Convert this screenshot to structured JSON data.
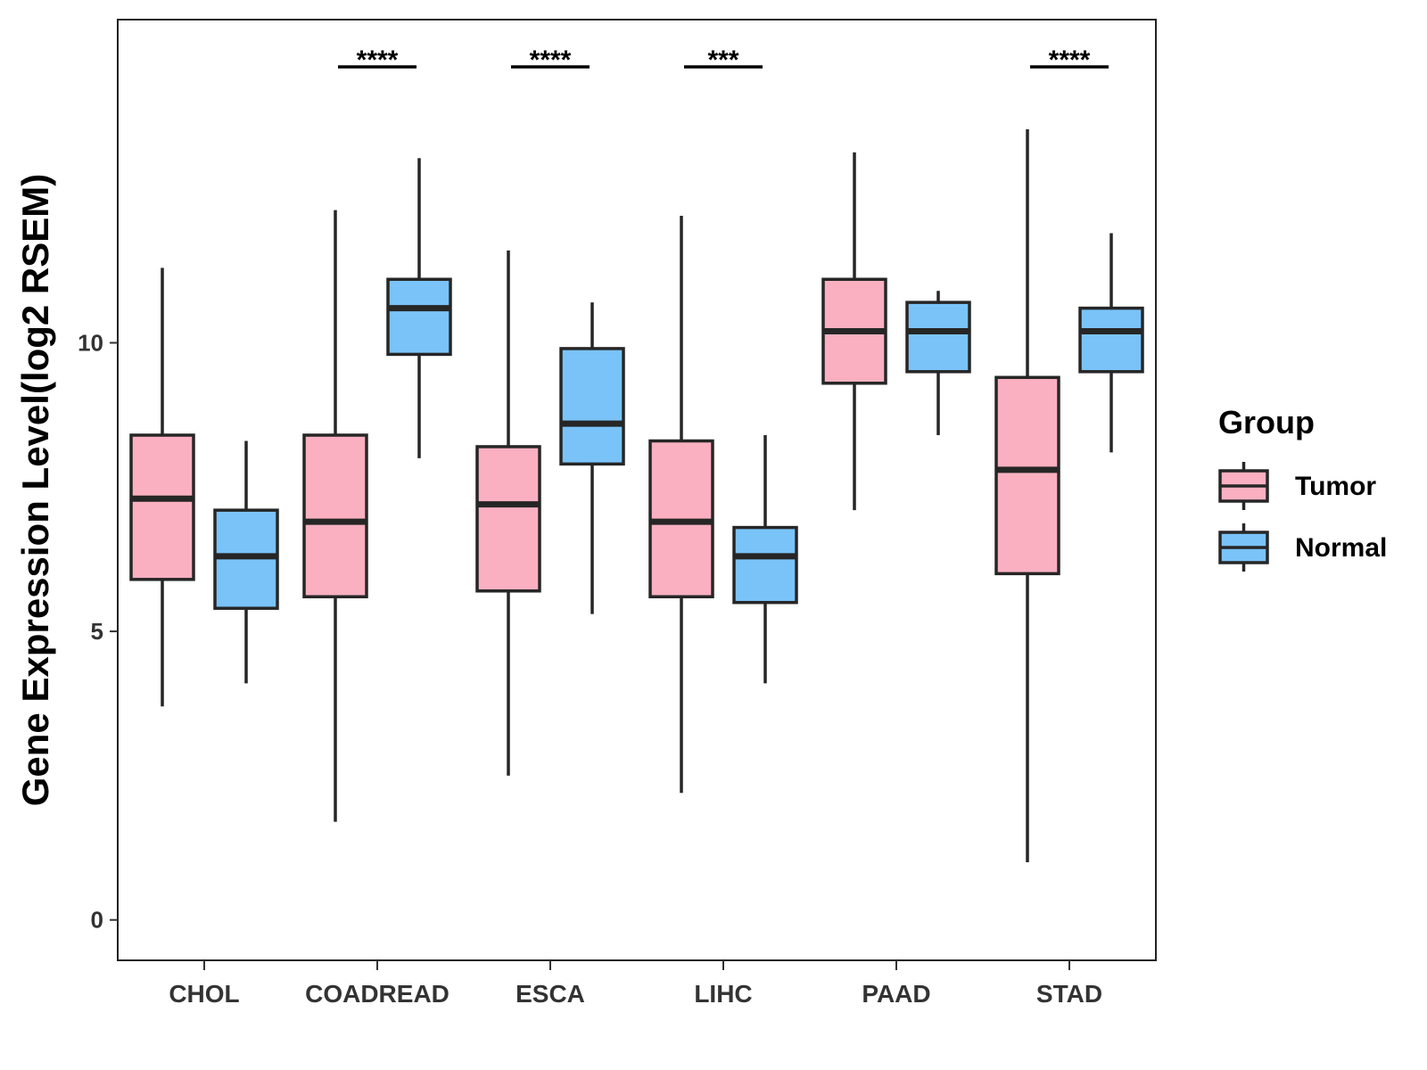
{
  "chart_data": {
    "type": "boxplot",
    "title": "",
    "xlabel": "",
    "ylabel": "Gene Expression Level(log2 RSEM)",
    "ylim": [
      -0.7,
      15.6
    ],
    "yticks": [
      0,
      5,
      10
    ],
    "grid": false,
    "categories": [
      "CHOL",
      "COADREAD",
      "ESCA",
      "LIHC",
      "PAAD",
      "STAD"
    ],
    "series": [
      {
        "name": "Tumor",
        "color": "#fab0c1",
        "boxes": [
          {
            "min": 3.7,
            "q1": 5.9,
            "median": 7.3,
            "q3": 8.4,
            "max": 11.3
          },
          {
            "min": 1.7,
            "q1": 5.6,
            "median": 6.9,
            "q3": 8.4,
            "max": 12.3
          },
          {
            "min": 2.5,
            "q1": 5.7,
            "median": 7.2,
            "q3": 8.2,
            "max": 11.6
          },
          {
            "min": 2.2,
            "q1": 5.6,
            "median": 6.9,
            "q3": 8.3,
            "max": 12.2
          },
          {
            "min": 7.1,
            "q1": 9.3,
            "median": 10.2,
            "q3": 11.1,
            "max": 13.3
          },
          {
            "min": 1.0,
            "q1": 6.0,
            "median": 7.8,
            "q3": 9.4,
            "max": 13.7
          }
        ]
      },
      {
        "name": "Normal",
        "color": "#7ac3f8",
        "boxes": [
          {
            "min": 4.1,
            "q1": 5.4,
            "median": 6.3,
            "q3": 7.1,
            "max": 8.3
          },
          {
            "min": 8.0,
            "q1": 9.8,
            "median": 10.6,
            "q3": 11.1,
            "max": 13.2
          },
          {
            "min": 5.3,
            "q1": 7.9,
            "median": 8.6,
            "q3": 9.9,
            "max": 10.7
          },
          {
            "min": 4.1,
            "q1": 5.5,
            "median": 6.3,
            "q3": 6.8,
            "max": 8.4
          },
          {
            "min": 8.4,
            "q1": 9.5,
            "median": 10.2,
            "q3": 10.7,
            "max": 10.9
          },
          {
            "min": 8.1,
            "q1": 9.5,
            "median": 10.2,
            "q3": 10.6,
            "max": 11.9
          }
        ]
      }
    ],
    "significance": [
      "",
      "****",
      "****",
      "***",
      "",
      "****"
    ],
    "legend": {
      "title": "Group",
      "position": "right",
      "items": [
        "Tumor",
        "Normal"
      ]
    }
  }
}
